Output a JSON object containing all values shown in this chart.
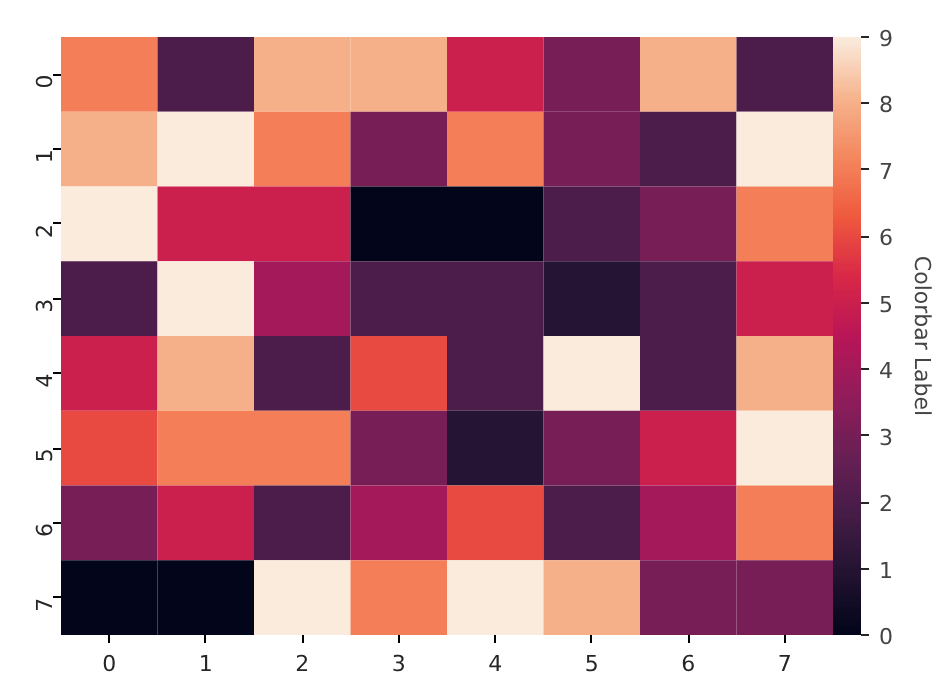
{
  "chart_data": {
    "type": "heatmap",
    "clabel": "Colorbar Label",
    "categories": [
      "0",
      "1",
      "2",
      "3",
      "4",
      "5",
      "6",
      "7"
    ],
    "y_categories": [
      "0",
      "1",
      "2",
      "3",
      "4",
      "5",
      "6",
      "7"
    ],
    "cells": [
      [
        7,
        2,
        8,
        8,
        5,
        3,
        8,
        2
      ],
      [
        8,
        9,
        7,
        3,
        7,
        3,
        2,
        9
      ],
      [
        9,
        5,
        5,
        0,
        0,
        2,
        3,
        7
      ],
      [
        2,
        9,
        4,
        2,
        2,
        1,
        2,
        5
      ],
      [
        5,
        8,
        2,
        6,
        2,
        9,
        2,
        8
      ],
      [
        6,
        7,
        7,
        3,
        1,
        3,
        5,
        9
      ],
      [
        3,
        5,
        2,
        4,
        6,
        2,
        4,
        7
      ],
      [
        0,
        0,
        9,
        7,
        9,
        8,
        3,
        3
      ]
    ],
    "clim": [
      0,
      9
    ],
    "cticks": [
      0,
      1,
      2,
      3,
      4,
      5,
      6,
      7,
      8,
      9
    ]
  }
}
